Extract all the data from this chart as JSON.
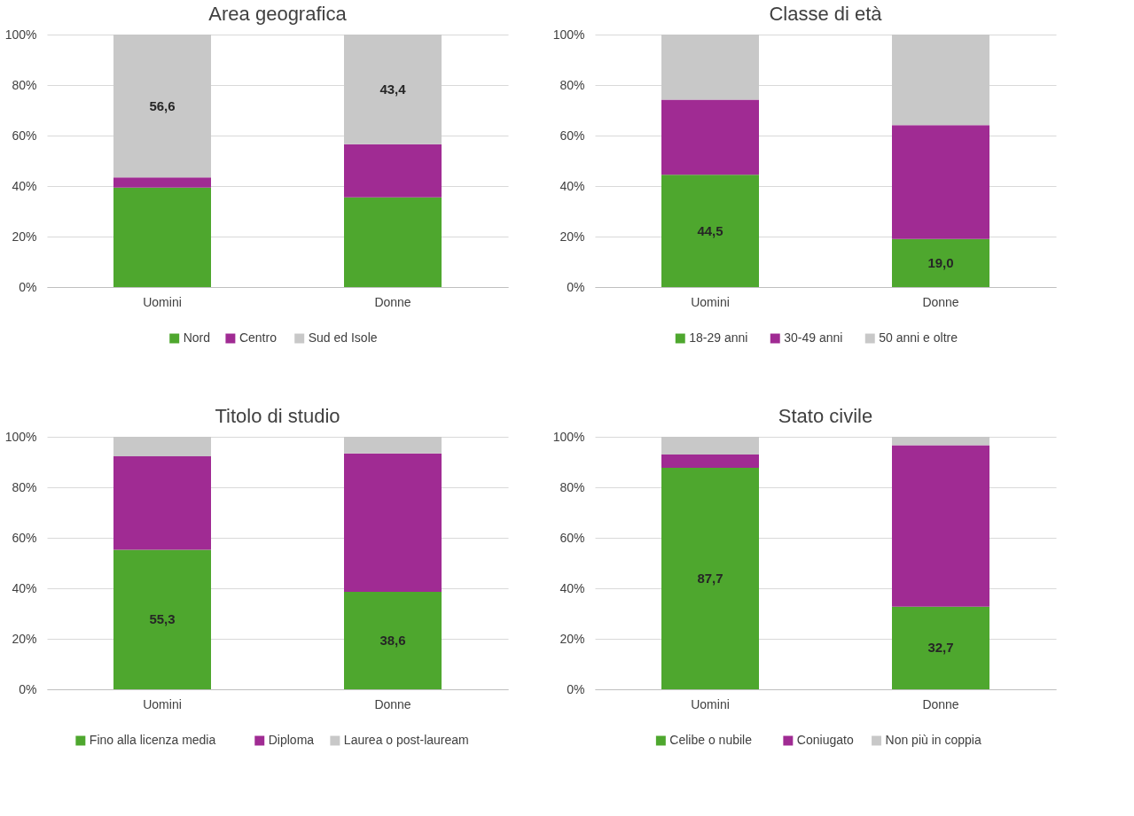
{
  "chart_data": [
    {
      "type": "bar",
      "title": "Area geografica",
      "categories": [
        "Uomini",
        "Donne"
      ],
      "stacked": true,
      "legend": "bottom",
      "grid": "y",
      "ylim": [
        0,
        100
      ],
      "yticks": [
        {
          "value": 0,
          "label": "0%"
        },
        {
          "value": 20,
          "label": "20%"
        },
        {
          "value": 40,
          "label": "40%"
        },
        {
          "value": 60,
          "label": "60%"
        },
        {
          "value": 80,
          "label": "80%"
        },
        {
          "value": 100,
          "label": "100%"
        }
      ],
      "series": [
        {
          "name": "Nord",
          "color": "#4ea72e",
          "values": [
            39.4,
            35.5
          ],
          "value_labels": [
            null,
            null
          ]
        },
        {
          "name": "Centro",
          "color": "#a02b93",
          "values": [
            4.0,
            21.1
          ],
          "value_labels": [
            null,
            null
          ]
        },
        {
          "name": "Sud ed Isole",
          "color": "#c8c8c8",
          "values": [
            56.6,
            43.4
          ],
          "value_labels": [
            "56,6",
            "43,4"
          ]
        }
      ]
    },
    {
      "type": "bar",
      "title": "Classe di età",
      "categories": [
        "Uomini",
        "Donne"
      ],
      "stacked": true,
      "legend": "bottom",
      "grid": "y",
      "ylim": [
        0,
        100
      ],
      "yticks": [
        {
          "value": 0,
          "label": "0%"
        },
        {
          "value": 20,
          "label": "20%"
        },
        {
          "value": 40,
          "label": "40%"
        },
        {
          "value": 60,
          "label": "60%"
        },
        {
          "value": 80,
          "label": "80%"
        },
        {
          "value": 100,
          "label": "100%"
        }
      ],
      "series": [
        {
          "name": "18-29 anni",
          "color": "#4ea72e",
          "values": [
            44.5,
            19.0
          ],
          "value_labels": [
            "44,5",
            "19,0"
          ]
        },
        {
          "name": "30-49 anni",
          "color": "#a02b93",
          "values": [
            29.7,
            45.1
          ],
          "value_labels": [
            null,
            null
          ]
        },
        {
          "name": "50 anni e oltre",
          "color": "#c8c8c8",
          "values": [
            25.8,
            35.9
          ],
          "value_labels": [
            null,
            null
          ]
        }
      ]
    },
    {
      "type": "bar",
      "title": "Titolo di studio",
      "categories": [
        "Uomini",
        "Donne"
      ],
      "stacked": true,
      "legend": "bottom",
      "grid": "y",
      "ylim": [
        0,
        100
      ],
      "yticks": [
        {
          "value": 0,
          "label": "0%"
        },
        {
          "value": 20,
          "label": "20%"
        },
        {
          "value": 40,
          "label": "40%"
        },
        {
          "value": 60,
          "label": "60%"
        },
        {
          "value": 80,
          "label": "80%"
        },
        {
          "value": 100,
          "label": "100%"
        }
      ],
      "series": [
        {
          "name": "Fino alla licenza media",
          "color": "#4ea72e",
          "values": [
            55.3,
            38.6
          ],
          "value_labels": [
            "55,3",
            "38,6"
          ]
        },
        {
          "name": "Diploma",
          "color": "#a02b93",
          "values": [
            37.0,
            54.8
          ],
          "value_labels": [
            null,
            null
          ]
        },
        {
          "name": "Laurea o post-lauream",
          "color": "#c8c8c8",
          "values": [
            7.7,
            6.6
          ],
          "value_labels": [
            null,
            null
          ]
        }
      ]
    },
    {
      "type": "bar",
      "title": "Stato civile",
      "categories": [
        "Uomini",
        "Donne"
      ],
      "stacked": true,
      "legend": "bottom",
      "grid": "y",
      "ylim": [
        0,
        100
      ],
      "yticks": [
        {
          "value": 0,
          "label": "0%"
        },
        {
          "value": 20,
          "label": "20%"
        },
        {
          "value": 40,
          "label": "40%"
        },
        {
          "value": 60,
          "label": "60%"
        },
        {
          "value": 80,
          "label": "80%"
        },
        {
          "value": 100,
          "label": "100%"
        }
      ],
      "series": [
        {
          "name": "Celibe o nubile",
          "color": "#4ea72e",
          "values": [
            87.7,
            32.7
          ],
          "value_labels": [
            "87,7",
            "32,7"
          ]
        },
        {
          "name": "Coniugato",
          "color": "#a02b93",
          "values": [
            5.3,
            64.0
          ],
          "value_labels": [
            null,
            null
          ]
        },
        {
          "name": "Non più in coppia",
          "color": "#c8c8c8",
          "values": [
            7.0,
            3.3
          ],
          "value_labels": [
            null,
            null
          ]
        }
      ]
    }
  ]
}
